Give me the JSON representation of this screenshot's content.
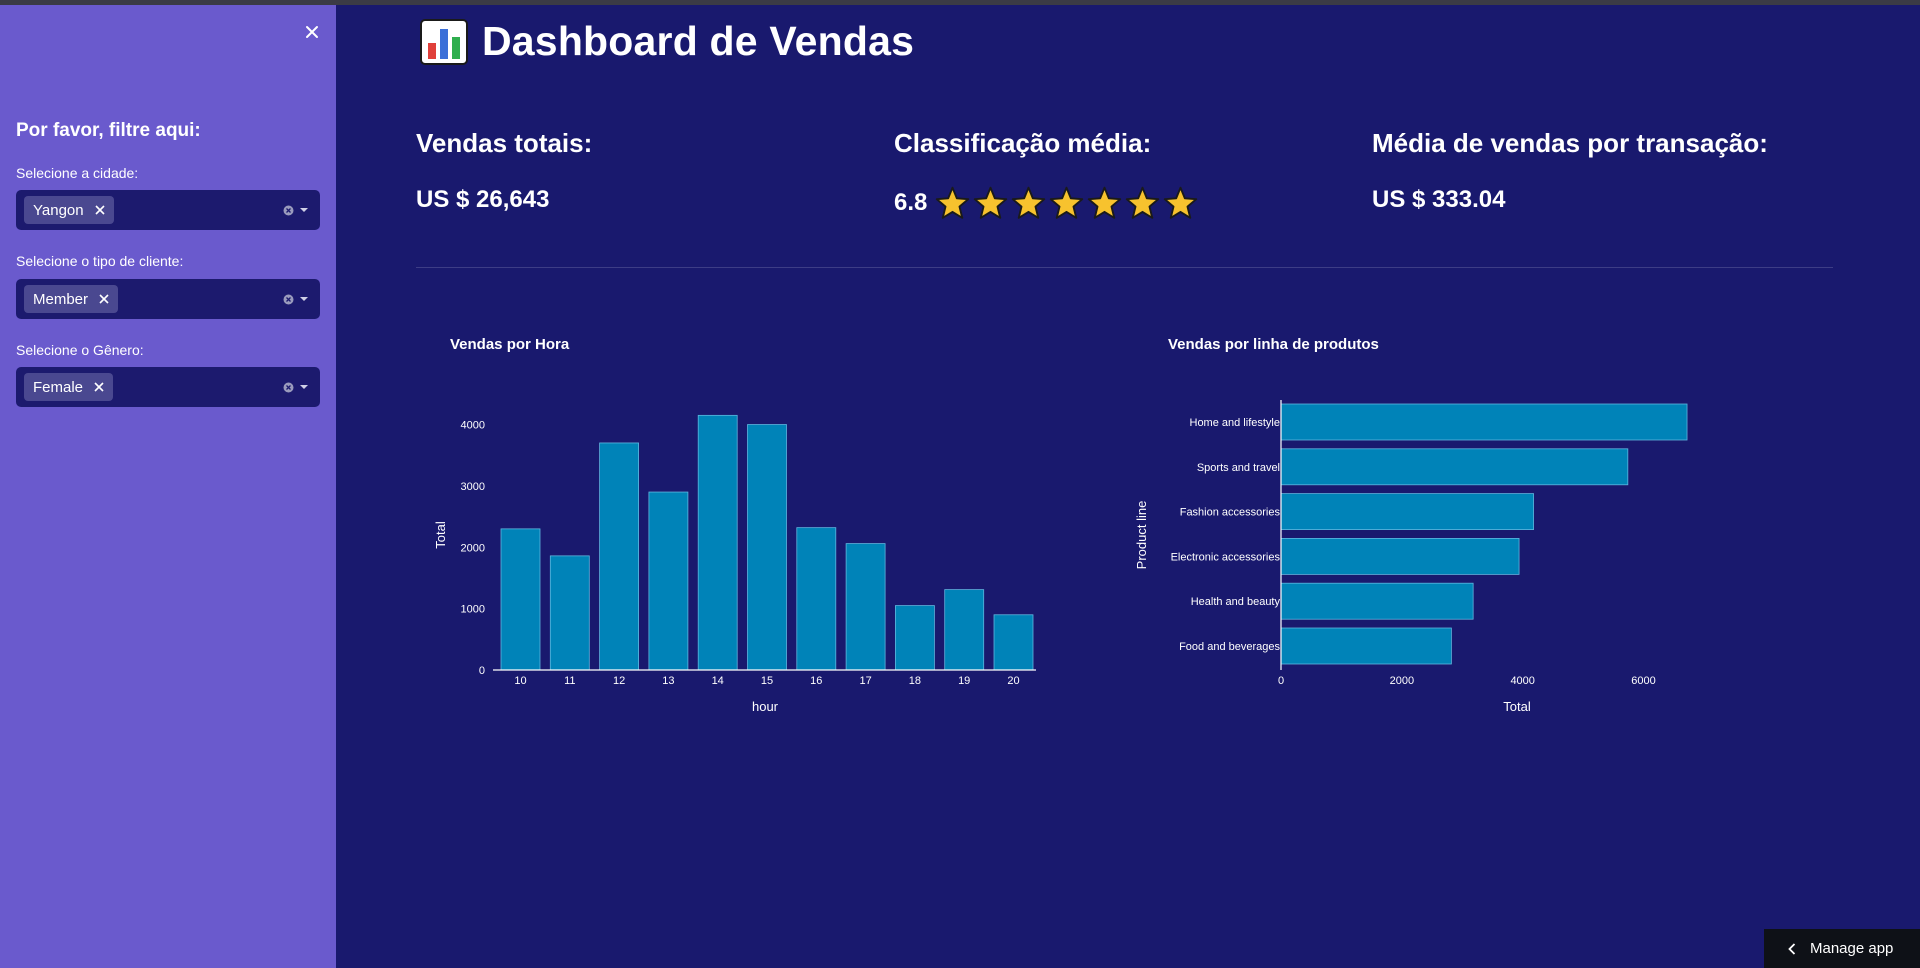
{
  "sidebar": {
    "title": "Por favor, filtre aqui:",
    "filters": [
      {
        "label": "Selecione a cidade:",
        "chip": "Yangon"
      },
      {
        "label": "Selecione o tipo de cliente:",
        "chip": "Member"
      },
      {
        "label": "Selecione o Gênero:",
        "chip": "Female"
      }
    ]
  },
  "header": {
    "title": "Dashboard de Vendas",
    "icon": "bar-chart-icon"
  },
  "kpis": {
    "total_label": "Vendas totais:",
    "total_value": "US $ 26,643",
    "rating_label": "Classificação média:",
    "rating_value": "6.8",
    "rating_stars": 7,
    "avg_label": "Média de vendas por transação:",
    "avg_value": "US $ 333.04"
  },
  "colors": {
    "bg": "#19196e",
    "sidebar": "#6a5acd",
    "bar": "#0083b8",
    "star": "#f7c22e"
  },
  "chart_data": [
    {
      "type": "bar",
      "title": "Vendas por Hora",
      "xlabel": "hour",
      "ylabel": "Total",
      "categories": [
        "10",
        "11",
        "12",
        "13",
        "14",
        "15",
        "16",
        "17",
        "18",
        "19",
        "20"
      ],
      "values": [
        2300,
        1860,
        3700,
        2900,
        4150,
        4000,
        2320,
        2060,
        1050,
        1310,
        900
      ],
      "ylim": [
        0,
        4400
      ],
      "yticks": [
        0,
        1000,
        2000,
        3000,
        4000
      ],
      "grid": false
    },
    {
      "type": "bar",
      "orientation": "horizontal",
      "title": "Vendas por linha de produtos",
      "xlabel": "Total",
      "ylabel": "Product line",
      "categories": [
        "Home and lifestyle",
        "Sports and travel",
        "Fashion accessories",
        "Electronic accessories",
        "Health and beauty",
        "Food and beverages"
      ],
      "values": [
        6720,
        5740,
        4180,
        3940,
        3180,
        2820
      ],
      "xlim": [
        0,
        7100
      ],
      "xticks": [
        0,
        2000,
        4000,
        6000
      ],
      "grid": false
    }
  ],
  "footer": {
    "manage_label": "Manage app"
  }
}
